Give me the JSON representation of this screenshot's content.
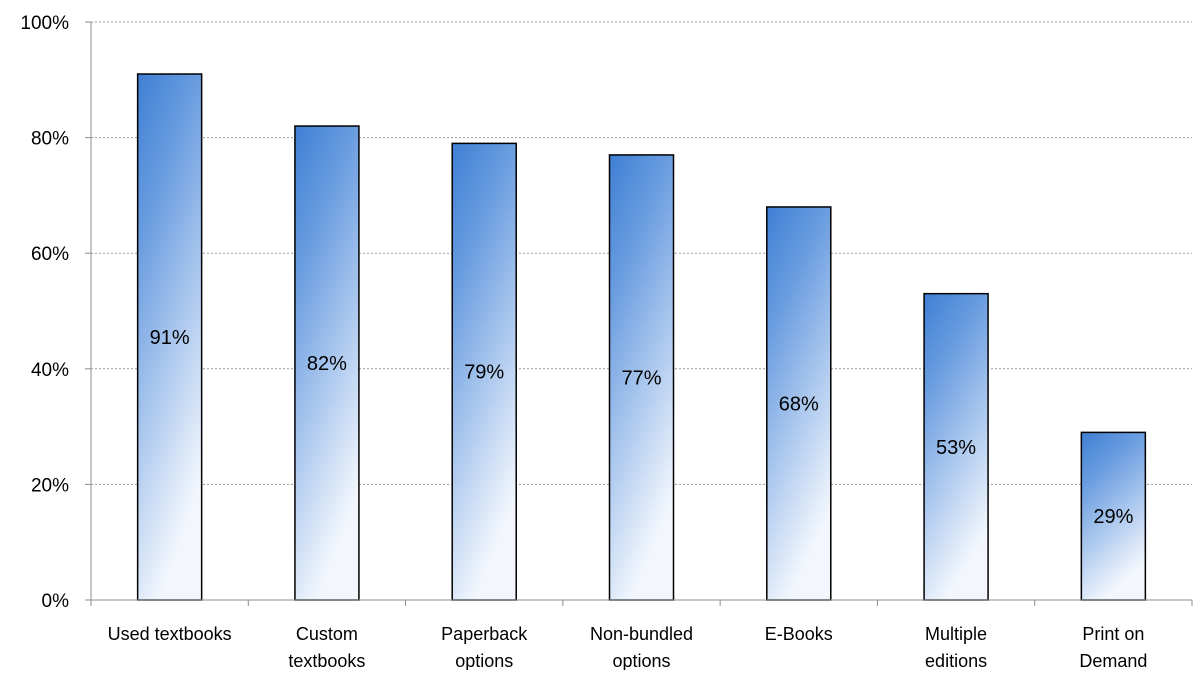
{
  "chart_data": {
    "type": "bar",
    "categories": [
      [
        "Used textbooks"
      ],
      [
        "Custom",
        "textbooks"
      ],
      [
        "Paperback",
        "options"
      ],
      [
        "Non-bundled",
        "options"
      ],
      [
        "E-Books"
      ],
      [
        "Multiple",
        "editions"
      ],
      [
        "Print on",
        "Demand"
      ]
    ],
    "values": [
      91,
      82,
      79,
      77,
      68,
      53,
      29
    ],
    "value_labels": [
      "91%",
      "82%",
      "79%",
      "77%",
      "68%",
      "53%",
      "29%"
    ],
    "yticks": [
      "0%",
      "20%",
      "40%",
      "60%",
      "80%",
      "100%"
    ],
    "ylim": [
      0,
      100
    ],
    "title": "",
    "xlabel": "",
    "ylabel": "",
    "grid": true,
    "legend": "none",
    "colors": {
      "bar_top": "#3f7fd4",
      "bar_bottom": "#f3f7fd",
      "bar_outline": "#000000",
      "grid": "#9a9a9a",
      "axis": "#8c8c8c"
    }
  }
}
